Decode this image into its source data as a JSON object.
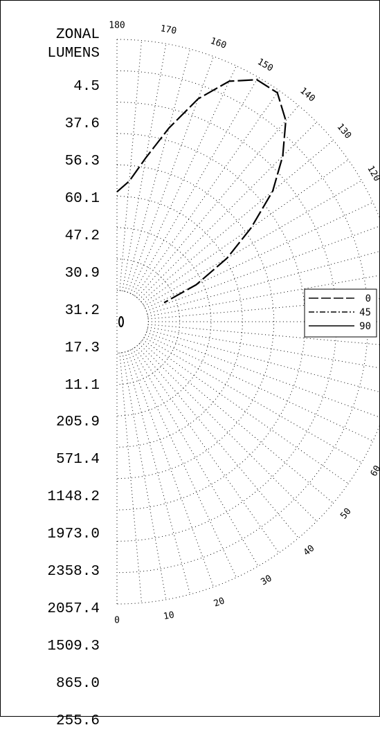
{
  "chart_data": {
    "type": "polar-line",
    "header": [
      "ZONAL",
      "LUMENS"
    ],
    "zonal_lumens": [
      "4.5",
      "37.6",
      "56.3",
      "60.1",
      "47.2",
      "30.9",
      "31.2",
      "17.3",
      "11.1",
      "205.9",
      "571.4",
      "1148.2",
      "1973.0",
      "2358.3",
      "2057.4",
      "1509.3",
      "865.0",
      "255.6"
    ],
    "angle_labels_lower": [
      "0",
      "10",
      "20",
      "30",
      "40",
      "50",
      "60"
    ],
    "angle_labels_upper": [
      "120",
      "130",
      "140",
      "150",
      "160",
      "170",
      "180"
    ],
    "legend": [
      {
        "label": "0",
        "style": "long-dash"
      },
      {
        "label": "45",
        "style": "dash-dot"
      },
      {
        "label": "90",
        "style": "solid"
      }
    ],
    "radial_rings": 9,
    "spoke_step_deg": 5,
    "grid": true,
    "series": [
      {
        "name": "0",
        "angles": [
          180,
          175,
          170,
          165,
          160,
          155,
          150,
          145,
          140,
          135,
          130,
          125,
          120,
          115,
          112
        ],
        "r": [
          0.46,
          0.5,
          0.59,
          0.71,
          0.84,
          0.94,
          0.99,
          0.99,
          0.93,
          0.83,
          0.72,
          0.58,
          0.45,
          0.31,
          0.18
        ]
      }
    ]
  }
}
